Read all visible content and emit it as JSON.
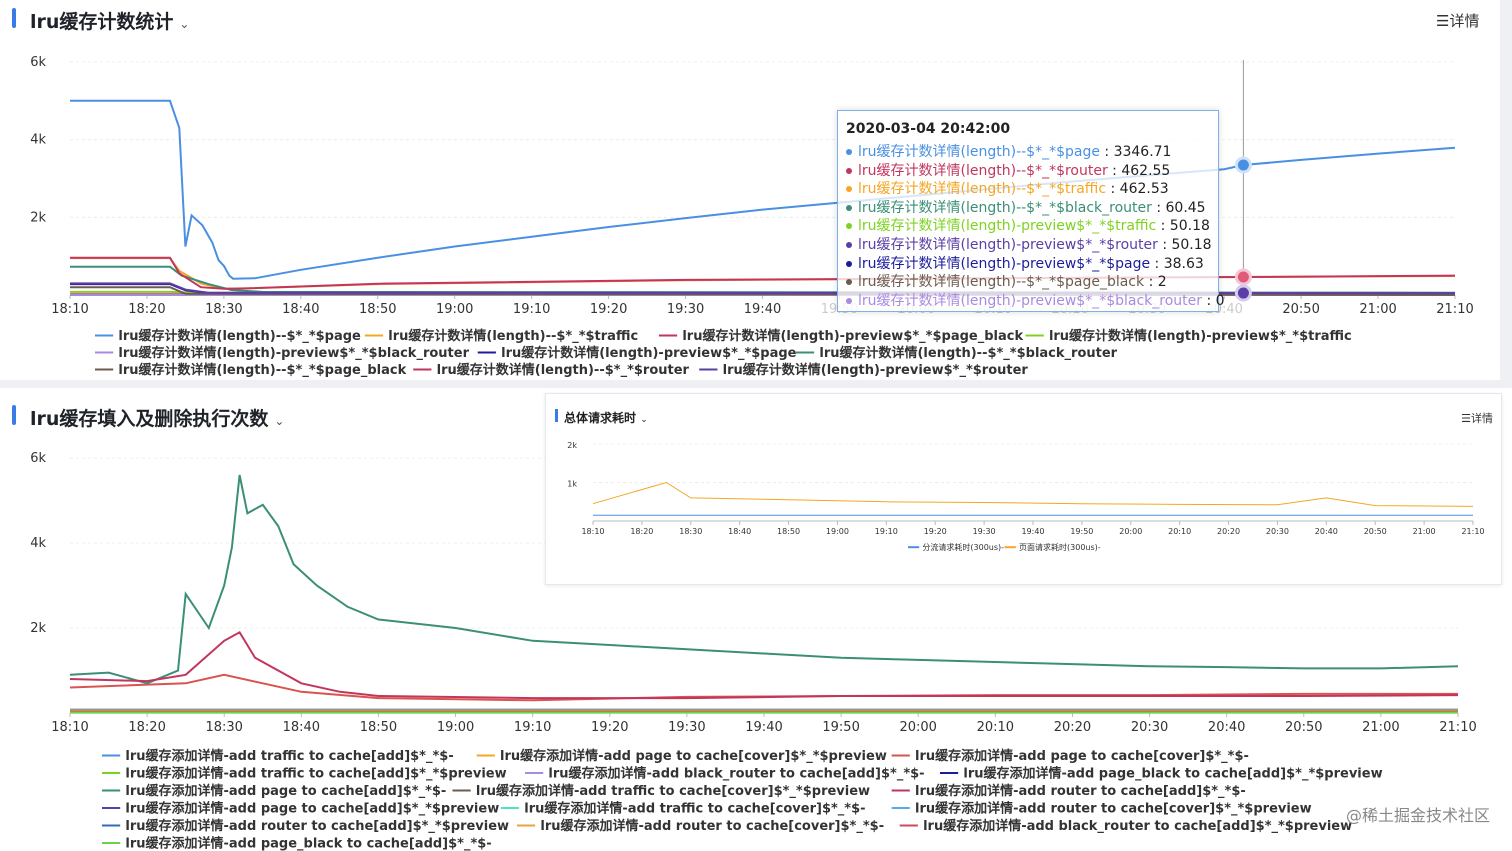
{
  "panel1": {
    "title": "lru缓存计数统计",
    "detail": "详情",
    "detail_icon": "list-icon",
    "chevron_icon": "chevron-down-icon"
  },
  "panel2": {
    "title": "lru缓存填入及删除执行次数",
    "chevron_icon": "chevron-down-icon"
  },
  "inset": {
    "title": "总体请求耗时",
    "detail": "详情"
  },
  "tooltip": {
    "title": "2020-03-04 20:42:00",
    "rows": [
      {
        "name": "lru缓存计数详情(length)--$*_*$page",
        "value": ": 3346.71",
        "color": "#4a90e2"
      },
      {
        "name": "lru缓存计数详情(length)--$*_*$router",
        "value": ": 462.55",
        "color": "#c2365d"
      },
      {
        "name": "lru缓存计数详情(length)--$*_*$traffic",
        "value": ": 462.53",
        "color": "#f5a623"
      },
      {
        "name": "lru缓存计数详情(length)--$*_*$black_router",
        "value": ": 60.45",
        "color": "#3b8f78"
      },
      {
        "name": "lru缓存计数详情(length)-preview$*_*$traffic",
        "value": ": 50.18",
        "color": "#7ed321"
      },
      {
        "name": "lru缓存计数详情(length)-preview$*_*$router",
        "value": ": 50.18",
        "color": "#5b3ea6"
      },
      {
        "name": "lru缓存计数详情(length)-preview$*_*$page",
        "value": ": 38.63",
        "color": "#1c1c9e"
      },
      {
        "name": "lru缓存计数详情(length)--$*_*$page_black",
        "value": ": 2",
        "color": "#6d5b4f"
      },
      {
        "name": "lru缓存计数详情(length)-preview$*_*$black_router",
        "value": ": 0",
        "color": "#a78be0"
      }
    ]
  },
  "watermark": "@稀土掘金技术社区",
  "chart_data": [
    {
      "type": "line",
      "title": "lru缓存计数统计",
      "x": [
        "18:10",
        "18:20",
        "18:30",
        "18:40",
        "18:50",
        "19:00",
        "19:10",
        "19:20",
        "19:30",
        "19:40",
        "19:50",
        "20:00",
        "20:10",
        "20:20",
        "20:30",
        "20:40",
        "20:50",
        "21:00",
        "21:10"
      ],
      "x_hidden": [
        "19:50",
        "20:00",
        "20:10",
        "20:20",
        "20:30",
        "20:40"
      ],
      "yticks": [
        "6k",
        "4k",
        "2k"
      ],
      "ylim": [
        0,
        6000
      ],
      "grid": true,
      "legend_position": "bottom",
      "series": [
        {
          "name": "lru缓存计数详情(length)--$*_*$page",
          "color": "#4a90e2",
          "points": [
            [
              0,
              5000
            ],
            [
              1.3,
              5000
            ],
            [
              1.42,
              4300
            ],
            [
              1.5,
              1250
            ],
            [
              1.58,
              2050
            ],
            [
              1.72,
              1800
            ],
            [
              1.85,
              1350
            ],
            [
              1.93,
              900
            ],
            [
              2.0,
              750
            ],
            [
              2.07,
              500
            ],
            [
              2.12,
              420
            ],
            [
              2.4,
              430
            ],
            [
              3.0,
              650
            ],
            [
              4.0,
              960
            ],
            [
              5.0,
              1250
            ],
            [
              6.0,
              1500
            ],
            [
              7.0,
              1750
            ],
            [
              8.0,
              1980
            ],
            [
              9.0,
              2200
            ],
            [
              10.0,
              2380
            ],
            [
              11.0,
              2560
            ],
            [
              12.0,
              2740
            ],
            [
              13.0,
              2920
            ],
            [
              14.0,
              3080
            ],
            [
              15.0,
              3240
            ],
            [
              15.25,
              3346.71
            ],
            [
              16.0,
              3480
            ],
            [
              17.0,
              3640
            ],
            [
              18.0,
              3790
            ]
          ]
        },
        {
          "name": "lru缓存计数详情(length)--$*_*$traffic",
          "color": "#f5a623",
          "points": [
            [
              0,
              950
            ],
            [
              1.3,
              950
            ],
            [
              1.42,
              620
            ],
            [
              1.7,
              300
            ],
            [
              2.0,
              160
            ],
            [
              2.3,
              170
            ],
            [
              4,
              280
            ],
            [
              8,
              380
            ],
            [
              12,
              430
            ],
            [
              15.25,
              462.53
            ],
            [
              18,
              490
            ]
          ]
        },
        {
          "name": "lru缓存计数详情(length)-preview$*_*$page_black",
          "color": "#c2365d",
          "points": [
            [
              0,
              20
            ],
            [
              18,
              20
            ]
          ]
        },
        {
          "name": "lru缓存计数详情(length)-preview$*_*$traffic",
          "color": "#7ed321",
          "points": [
            [
              0,
              80
            ],
            [
              1.3,
              80
            ],
            [
              1.6,
              60
            ],
            [
              18,
              52
            ]
          ]
        },
        {
          "name": "lru缓存计数详情(length)-preview$*_*$black_router",
          "color": "#a78be0",
          "points": [
            [
              0,
              0
            ],
            [
              18,
              0
            ]
          ]
        },
        {
          "name": "lru缓存计数详情(length)-preview$*_*$page",
          "color": "#1c1c9e",
          "points": [
            [
              0,
              280
            ],
            [
              1.3,
              280
            ],
            [
              1.5,
              120
            ],
            [
              1.8,
              50
            ],
            [
              18,
              40
            ]
          ]
        },
        {
          "name": "lru缓存计数详情(length)--$*_*$black_router",
          "color": "#3b8f78",
          "points": [
            [
              0,
              730
            ],
            [
              1.3,
              730
            ],
            [
              1.45,
              500
            ],
            [
              1.8,
              280
            ],
            [
              2.1,
              130
            ],
            [
              2.5,
              80
            ],
            [
              18,
              60
            ]
          ]
        },
        {
          "name": "lru缓存计数详情(length)--$*_*$page_black",
          "color": "#6d5b4f",
          "points": [
            [
              0,
              200
            ],
            [
              1.3,
              200
            ],
            [
              1.5,
              30
            ],
            [
              18,
              2
            ]
          ]
        },
        {
          "name": "lru缓存计数详情(length)--$*_*$router",
          "color": "#c2365d",
          "points": [
            [
              0,
              960
            ],
            [
              1.3,
              960
            ],
            [
              1.42,
              560
            ],
            [
              1.7,
              200
            ],
            [
              2.0,
              160
            ],
            [
              2.3,
              170
            ],
            [
              4,
              290
            ],
            [
              8,
              390
            ],
            [
              12,
              430
            ],
            [
              15.25,
              462.55
            ],
            [
              18,
              500
            ]
          ]
        },
        {
          "name": "lru缓存计数详情(length)-preview$*_*$router",
          "color": "#5b3ea6",
          "points": [
            [
              0,
              300
            ],
            [
              1.3,
              300
            ],
            [
              1.5,
              140
            ],
            [
              1.8,
              60
            ],
            [
              18,
              50
            ]
          ]
        }
      ],
      "tooltip_x": 15.25
    },
    {
      "type": "line",
      "title": "lru缓存填入及删除执行次数",
      "x": [
        "18:10",
        "18:20",
        "18:30",
        "18:40",
        "18:50",
        "19:00",
        "19:10",
        "19:20",
        "19:30",
        "19:40",
        "19:50",
        "20:00",
        "20:10",
        "20:20",
        "20:30",
        "20:40",
        "20:50",
        "21:00",
        "21:10"
      ],
      "yticks": [
        "6k",
        "4k",
        "2k"
      ],
      "ylim": [
        0,
        6000
      ],
      "grid": true,
      "legend_position": "bottom",
      "series": [
        {
          "name": "lru缓存添加详情-add traffic to cache[add]$*_*$-",
          "color": "#4a90e2",
          "points": [
            [
              0,
              80
            ],
            [
              18,
              80
            ]
          ]
        },
        {
          "name": "lru缓存添加详情-add page to cache[cover]$*_*$preview",
          "color": "#f5a623",
          "points": [
            [
              0,
              60
            ],
            [
              18,
              60
            ]
          ]
        },
        {
          "name": "lru缓存添加详情-add page to cache[cover]$*_*$-",
          "color": "#d9534f",
          "points": [
            [
              0,
              600
            ],
            [
              1.5,
              700
            ],
            [
              2,
              900
            ],
            [
              3,
              500
            ],
            [
              4,
              350
            ],
            [
              6,
              300
            ],
            [
              8,
              380
            ],
            [
              10,
              400
            ],
            [
              12,
              420
            ],
            [
              14,
              420
            ],
            [
              16,
              450
            ],
            [
              18,
              450
            ]
          ]
        },
        {
          "name": "lru缓存添加详情-add traffic to cache[add]$*_*$preview",
          "color": "#7ed321",
          "points": [
            [
              0,
              30
            ],
            [
              18,
              30
            ]
          ]
        },
        {
          "name": "lru缓存添加详情-add black_router to cache[add]$*_*$-",
          "color": "#a78be0",
          "points": [
            [
              0,
              40
            ],
            [
              18,
              40
            ]
          ]
        },
        {
          "name": "lru缓存添加详情-add page_black to cache[add]$*_*$preview",
          "color": "#1c1c9e",
          "points": [
            [
              0,
              20
            ],
            [
              18,
              20
            ]
          ]
        },
        {
          "name": "lru缓存添加详情-add page to cache[add]$*_*$-",
          "color": "#3b8f78",
          "points": [
            [
              0,
              900
            ],
            [
              0.5,
              950
            ],
            [
              1,
              700
            ],
            [
              1.4,
              1000
            ],
            [
              1.5,
              2800
            ],
            [
              1.8,
              2000
            ],
            [
              2.0,
              3000
            ],
            [
              2.1,
              3900
            ],
            [
              2.2,
              5600
            ],
            [
              2.3,
              4700
            ],
            [
              2.5,
              4900
            ],
            [
              2.7,
              4400
            ],
            [
              2.9,
              3500
            ],
            [
              3.2,
              3000
            ],
            [
              3.6,
              2500
            ],
            [
              4,
              2200
            ],
            [
              5,
              2000
            ],
            [
              6,
              1700
            ],
            [
              7,
              1600
            ],
            [
              8,
              1500
            ],
            [
              9,
              1400
            ],
            [
              10,
              1300
            ],
            [
              11,
              1250
            ],
            [
              12,
              1200
            ],
            [
              13,
              1150
            ],
            [
              14,
              1100
            ],
            [
              15,
              1080
            ],
            [
              16,
              1050
            ],
            [
              17,
              1050
            ],
            [
              18,
              1100
            ]
          ]
        },
        {
          "name": "lru缓存添加详情-add traffic to cache[cover]$*_*$preview",
          "color": "#6d5b4f",
          "points": [
            [
              0,
              50
            ],
            [
              18,
              50
            ]
          ]
        },
        {
          "name": "lru缓存添加详情-add router to cache[add]$*_*$-",
          "color": "#c2365d",
          "points": [
            [
              0,
              800
            ],
            [
              1,
              750
            ],
            [
              1.5,
              900
            ],
            [
              2.0,
              1700
            ],
            [
              2.2,
              1900
            ],
            [
              2.4,
              1300
            ],
            [
              2.6,
              1100
            ],
            [
              3,
              700
            ],
            [
              3.5,
              500
            ],
            [
              4,
              400
            ],
            [
              6,
              350
            ],
            [
              8,
              350
            ],
            [
              10,
              400
            ],
            [
              12,
              400
            ],
            [
              14,
              400
            ],
            [
              16,
              400
            ],
            [
              18,
              420
            ]
          ]
        },
        {
          "name": "lru缓存添加详情-add page to cache[add]$*_*$preview",
          "color": "#5b3ea6",
          "points": [
            [
              0,
              40
            ],
            [
              18,
              40
            ]
          ]
        },
        {
          "name": "lru缓存添加详情-add traffic to cache[cover]$*_*$-",
          "color": "#50e3c2",
          "points": [
            [
              0,
              30
            ],
            [
              18,
              30
            ]
          ]
        },
        {
          "name": "lru缓存添加详情-add router to cache[cover]$*_*$preview",
          "color": "#5aa9e6",
          "points": [
            [
              0,
              20
            ],
            [
              18,
              20
            ]
          ]
        },
        {
          "name": "lru缓存添加详情-add router to cache[add]$*_*$preview",
          "color": "#2e6fb5",
          "points": [
            [
              0,
              30
            ],
            [
              18,
              30
            ]
          ]
        },
        {
          "name": "lru缓存添加详情-add router to cache[cover]$*_*$-",
          "color": "#e8a33d",
          "points": [
            [
              0,
              40
            ],
            [
              18,
              40
            ]
          ]
        },
        {
          "name": "lru缓存添加详情-add black_router to cache[add]$*_*$preview",
          "color": "#d04a5a",
          "points": [
            [
              0,
              20
            ],
            [
              18,
              20
            ]
          ]
        },
        {
          "name": "lru缓存添加详情-add page_black to cache[add]$*_*$-",
          "color": "#6cd14f",
          "points": [
            [
              0,
              10
            ],
            [
              18,
              10
            ]
          ]
        }
      ]
    },
    {
      "type": "line",
      "title": "总体请求耗时",
      "x": [
        "18:10",
        "18:20",
        "18:30",
        "18:40",
        "18:50",
        "19:00",
        "19:10",
        "19:20",
        "19:30",
        "19:40",
        "19:50",
        "20:00",
        "20:10",
        "20:20",
        "20:30",
        "20:40",
        "20:50",
        "21:00",
        "21:10"
      ],
      "yticks": [
        "2k",
        "1k"
      ],
      "ylim": [
        0,
        2000
      ],
      "grid": true,
      "legend_position": "bottom",
      "series": [
        {
          "name": "分流请求耗时(300us)-",
          "color": "#4a90e2",
          "points": [
            [
              0,
              150
            ],
            [
              18,
              150
            ]
          ]
        },
        {
          "name": "页面请求耗时(300us)-",
          "color": "#f5a623",
          "points": [
            [
              0,
              450
            ],
            [
              1.5,
              1000
            ],
            [
              2,
              600
            ],
            [
              4,
              550
            ],
            [
              6,
              500
            ],
            [
              8,
              480
            ],
            [
              10,
              450
            ],
            [
              12,
              430
            ],
            [
              14,
              420
            ],
            [
              15,
              600
            ],
            [
              16,
              400
            ],
            [
              18,
              380
            ]
          ]
        }
      ]
    }
  ]
}
